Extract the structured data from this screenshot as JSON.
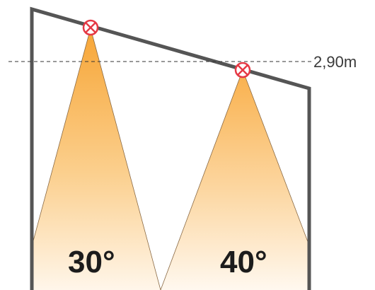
{
  "ceiling_height": {
    "label": "2,90m"
  },
  "beams": [
    {
      "angle_label": "30°"
    },
    {
      "angle_label": "40°"
    }
  ],
  "colors": {
    "wall": "#555555",
    "reference_line": "#333333",
    "beam_top": "#f7a535",
    "beam_bottom": "#fff6ea",
    "fixture": "#e53945",
    "fixture_fill": "#ffffff",
    "text": "#1c1c1c"
  },
  "icons": {
    "fixture": "downlight-symbol-icon"
  }
}
